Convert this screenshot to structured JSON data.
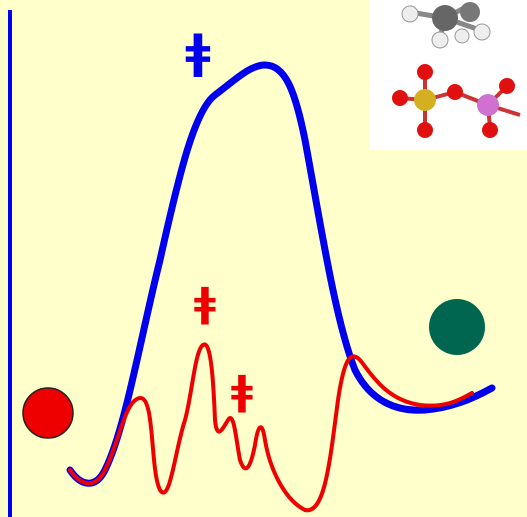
{
  "transition_state_labels": [
    "ǂ",
    "ǂ",
    "ǂ"
  ]
}
